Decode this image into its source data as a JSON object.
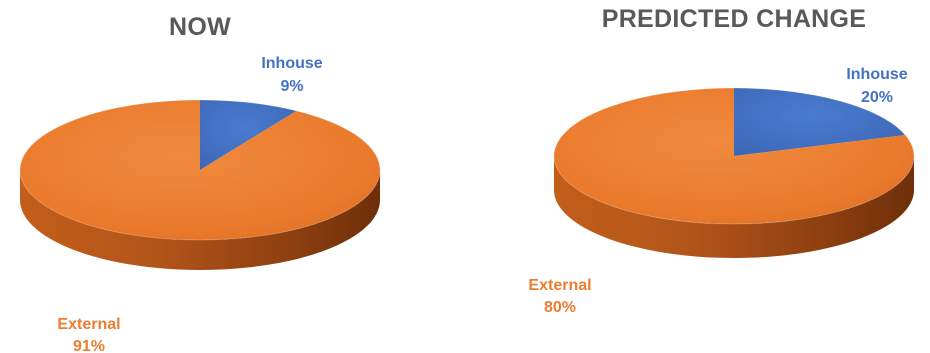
{
  "colors": {
    "inhouse": "#4472C4",
    "external": "#ED7D31",
    "title": "#595959"
  },
  "chart_data": [
    {
      "type": "pie",
      "title": "NOW",
      "categories": [
        "Inhouse",
        "External"
      ],
      "values": [
        9,
        91
      ],
      "data_labels": [
        {
          "name": "Inhouse",
          "value": "9%"
        },
        {
          "name": "External",
          "value": "91%"
        }
      ]
    },
    {
      "type": "pie",
      "title": "PREDICTED CHANGE",
      "categories": [
        "Inhouse",
        "External"
      ],
      "values": [
        20,
        80
      ],
      "data_labels": [
        {
          "name": "Inhouse",
          "value": "20%"
        },
        {
          "name": "External",
          "value": "80%"
        }
      ]
    }
  ]
}
